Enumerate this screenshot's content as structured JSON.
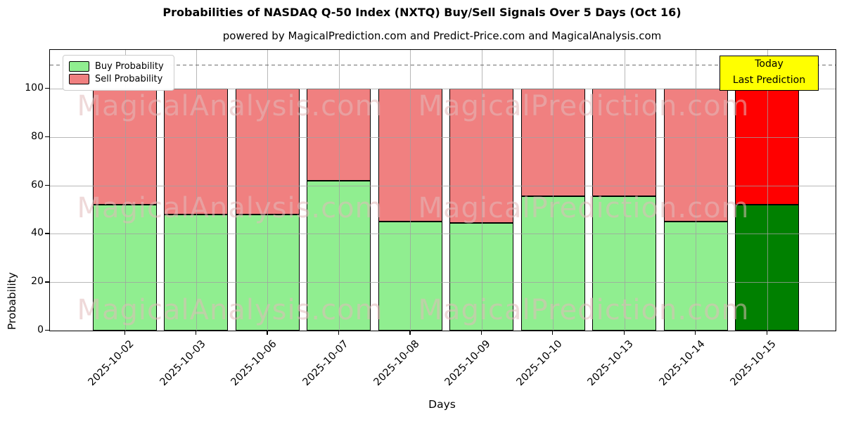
{
  "chart_data": {
    "type": "bar",
    "stacked": true,
    "title": "Probabilities of NASDAQ Q-50 Index (NXTQ) Buy/Sell Signals Over 5 Days (Oct 16)",
    "subtitle": "powered by MagicalPrediction.com and Predict-Price.com and MagicalAnalysis.com",
    "xlabel": "Days",
    "ylabel": "Probability",
    "categories": [
      "2025-10-02",
      "2025-10-03",
      "2025-10-06",
      "2025-10-07",
      "2025-10-08",
      "2025-10-09",
      "2025-10-10",
      "2025-10-13",
      "2025-10-14",
      "2025-10-15"
    ],
    "series": [
      {
        "name": "Buy Probability",
        "color": "#90ee90",
        "last_bar_color": "#008000",
        "values": [
          52,
          48,
          48,
          62,
          45,
          44.5,
          55.5,
          55.5,
          45,
          52
        ]
      },
      {
        "name": "Sell Probability",
        "color": "#f08080",
        "last_bar_color": "#ff0000",
        "values": [
          48,
          52,
          52,
          38,
          55,
          55.5,
          44.5,
          44.5,
          55,
          48
        ]
      }
    ],
    "ylim": [
      0,
      116
    ],
    "yticks": [
      0,
      20,
      40,
      60,
      80,
      100
    ],
    "grid": true,
    "legend_position": "upper left",
    "dashed_line_y": 110,
    "annotation_box": {
      "lines": [
        "Today",
        "Last Prediction"
      ],
      "bg_color": "#ffff00",
      "border_color": "#000000"
    },
    "watermarks": [
      "MagicalAnalysis.com",
      "MagicalPrediction.com"
    ],
    "colors": {
      "grid": "#a0a0a0",
      "dashed_line": "#6e6e6e",
      "bar_edge": "#000000",
      "background": "#ffffff"
    }
  }
}
